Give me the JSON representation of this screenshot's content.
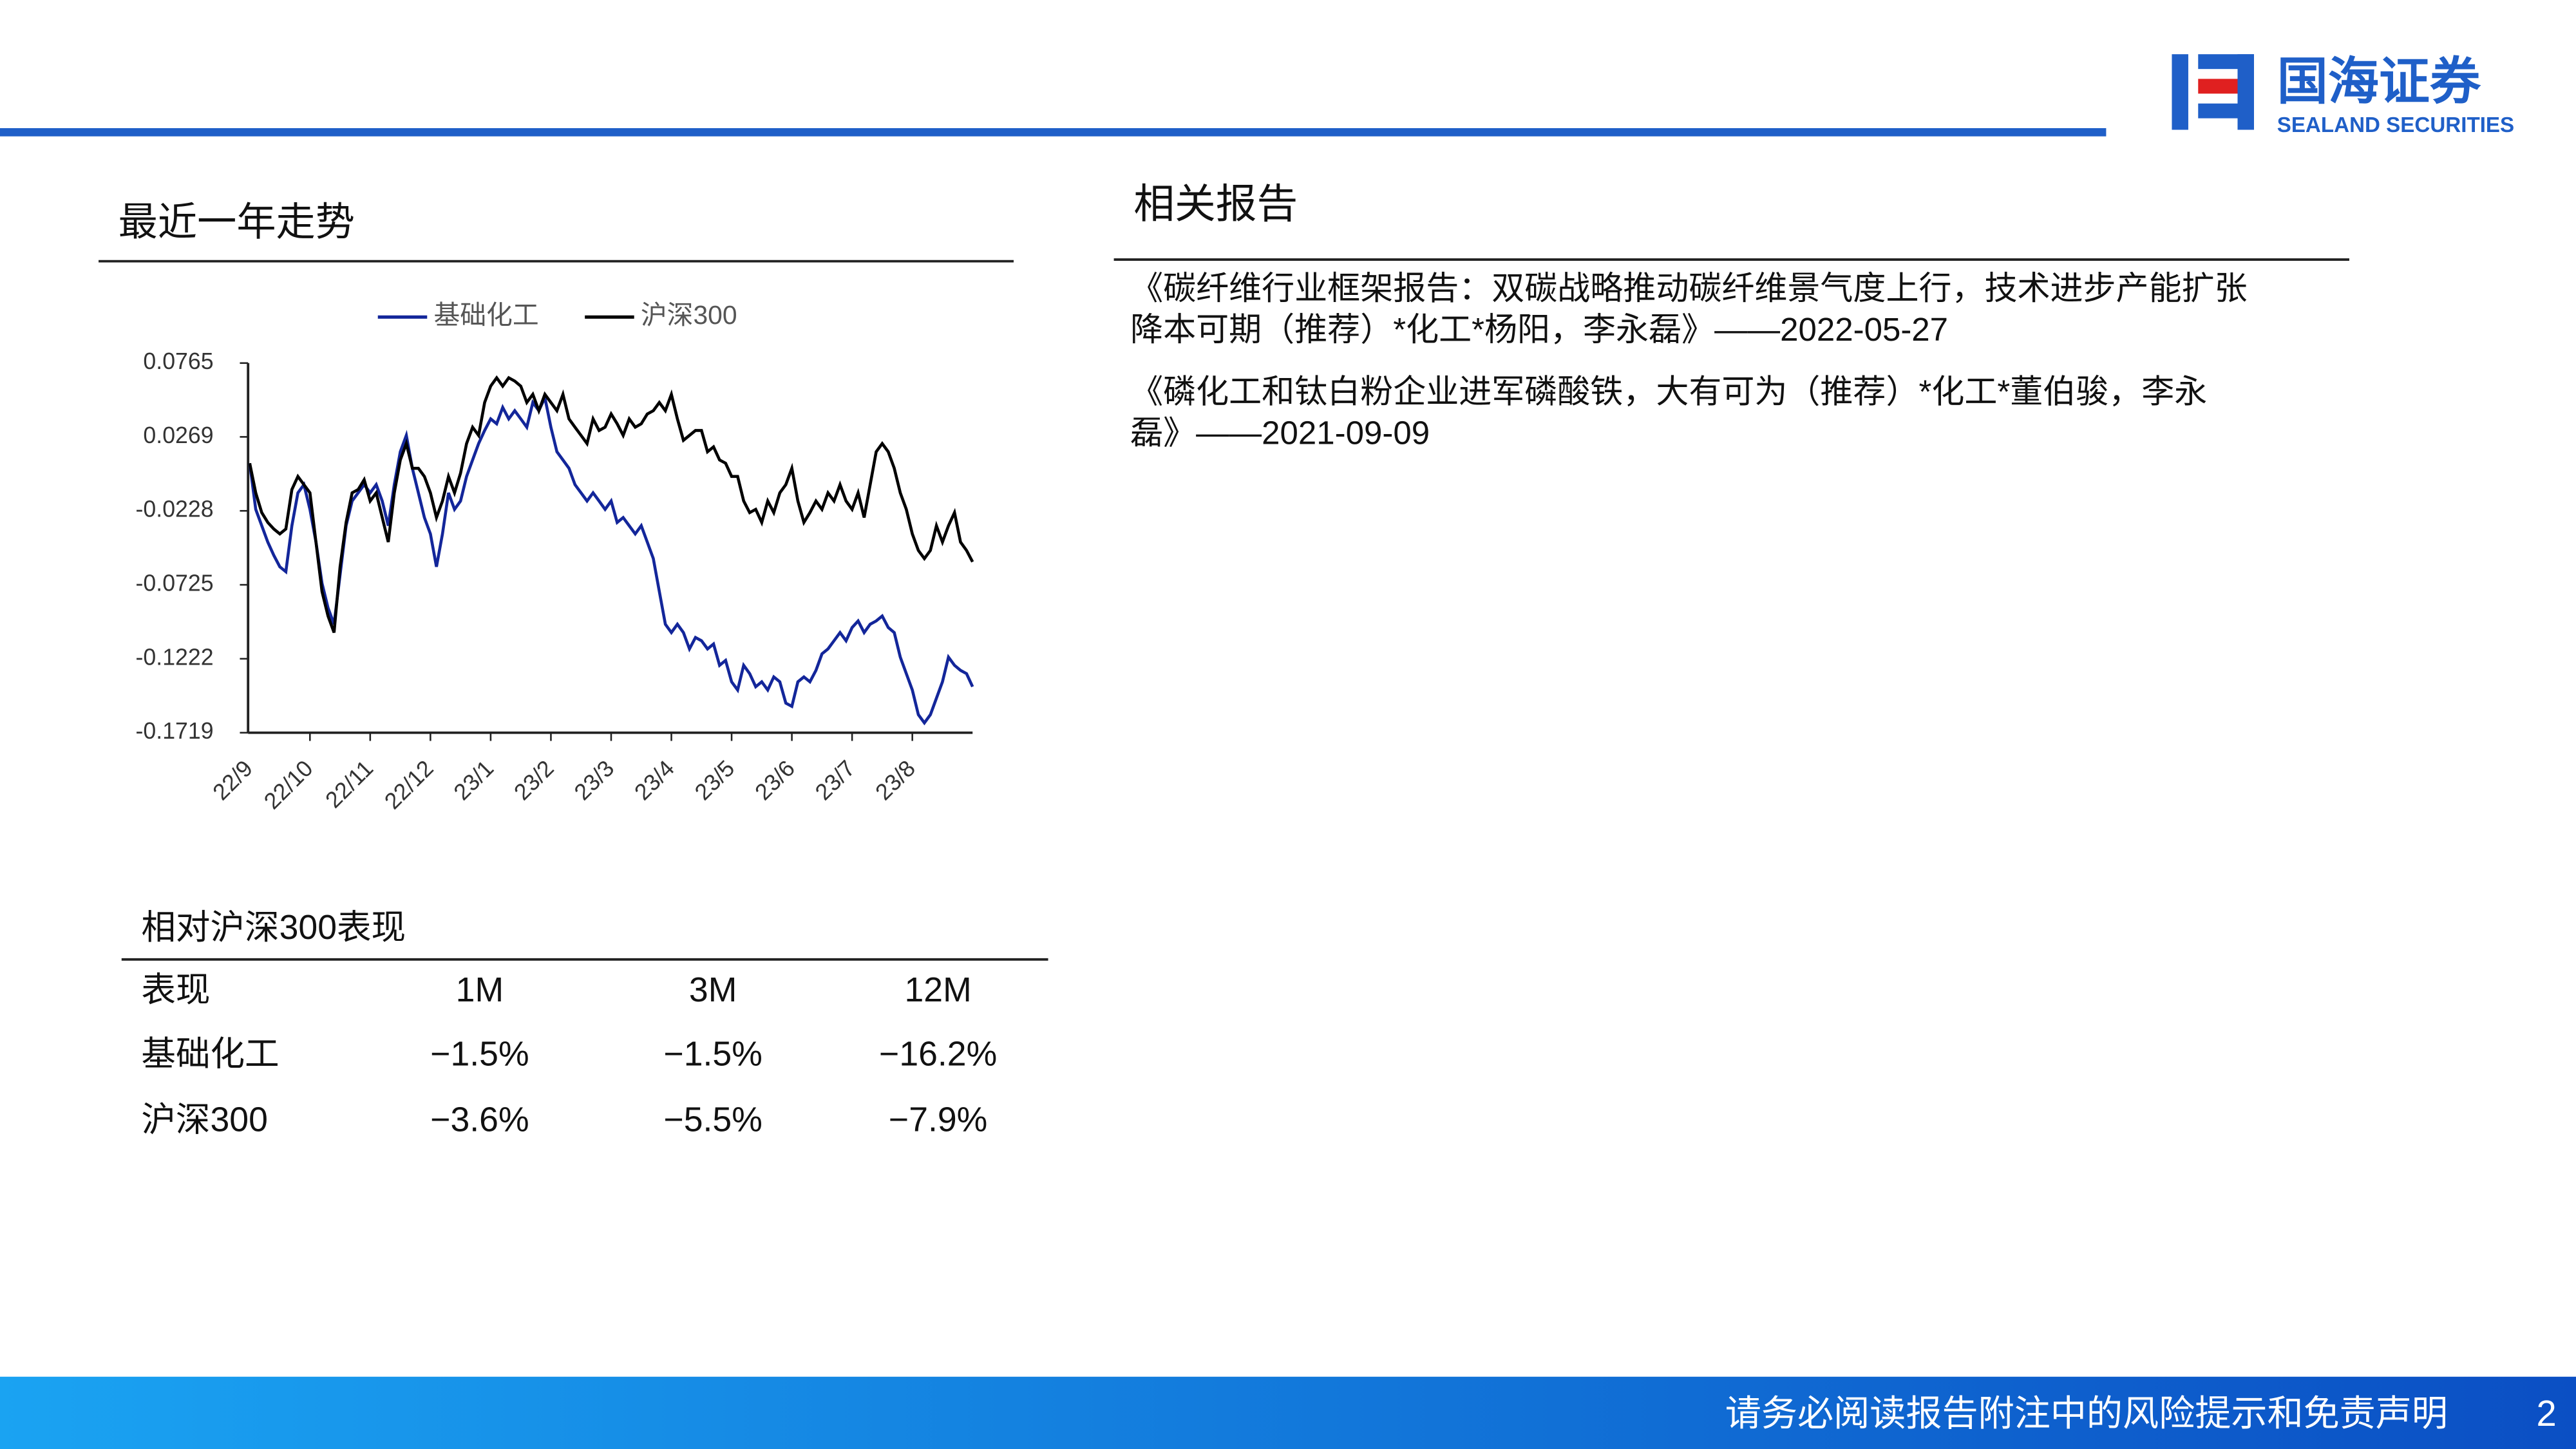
{
  "header": {
    "logo_cn": "国海证券",
    "logo_en": "SEALAND SECURITIES"
  },
  "trend": {
    "title": "最近一年走势"
  },
  "chart_data": {
    "type": "line",
    "categories": [
      "22/9",
      null,
      null,
      null,
      null,
      null,
      null,
      null,
      null,
      null,
      "22/10",
      null,
      null,
      null,
      null,
      null,
      null,
      null,
      null,
      null,
      "22/11",
      null,
      null,
      null,
      null,
      null,
      null,
      null,
      null,
      null,
      "22/12",
      null,
      null,
      null,
      null,
      null,
      null,
      null,
      null,
      null,
      "23/1",
      null,
      null,
      null,
      null,
      null,
      null,
      null,
      null,
      null,
      "23/2",
      null,
      null,
      null,
      null,
      null,
      null,
      null,
      null,
      null,
      "23/3",
      null,
      null,
      null,
      null,
      null,
      null,
      null,
      null,
      null,
      "23/4",
      null,
      null,
      null,
      null,
      null,
      null,
      null,
      null,
      null,
      "23/5",
      null,
      null,
      null,
      null,
      null,
      null,
      null,
      null,
      null,
      "23/6",
      null,
      null,
      null,
      null,
      null,
      null,
      null,
      null,
      null,
      "23/7",
      null,
      null,
      null,
      null,
      null,
      null,
      null,
      null,
      null,
      "23/8",
      null,
      null,
      null,
      null,
      null,
      null,
      null,
      null,
      null,
      null
    ],
    "series": [
      {
        "name": "基础化工",
        "color": "#13269a",
        "values": [
          0.0092,
          -0.0218,
          -0.0328,
          -0.0438,
          -0.0527,
          -0.0604,
          -0.0637,
          -0.0328,
          -0.0107,
          -0.0052,
          -0.0218,
          -0.0438,
          -0.0714,
          -0.088,
          -0.099,
          -0.0659,
          -0.0328,
          -0.0162,
          -0.0107,
          -0.0052,
          -0.0107,
          -0.0052,
          -0.0162,
          -0.0328,
          -0.0052,
          0.0169,
          0.0279,
          0.0058,
          -0.0107,
          -0.0273,
          -0.0383,
          -0.0604,
          -0.0383,
          -0.0107,
          -0.0218,
          -0.0162,
          0.0003,
          0.0114,
          0.0224,
          0.0312,
          0.039,
          0.0357,
          0.0467,
          0.039,
          0.0445,
          0.039,
          0.0334,
          0.05,
          0.0445,
          0.0533,
          0.0334,
          0.0169,
          0.0114,
          0.0058,
          -0.0052,
          -0.0107,
          -0.0162,
          -0.0107,
          -0.0162,
          -0.0218,
          -0.0162,
          -0.0306,
          -0.0273,
          -0.0328,
          -0.0383,
          -0.0328,
          -0.0438,
          -0.0549,
          -0.077,
          -0.099,
          -0.1046,
          -0.099,
          -0.1046,
          -0.1156,
          -0.1079,
          -0.1101,
          -0.1156,
          -0.1123,
          -0.1266,
          -0.1233,
          -0.1377,
          -0.1432,
          -0.1266,
          -0.1322,
          -0.141,
          -0.1377,
          -0.1432,
          -0.1344,
          -0.1377,
          -0.152,
          -0.1542,
          -0.1377,
          -0.1344,
          -0.1377,
          -0.13,
          -0.1189,
          -0.1156,
          -0.1101,
          -0.1046,
          -0.1101,
          -0.1012,
          -0.0968,
          -0.1046,
          -0.099,
          -0.0968,
          -0.0935,
          -0.1012,
          -0.1046,
          -0.1211,
          -0.1322,
          -0.1432,
          -0.1598,
          -0.1653,
          -0.1598,
          -0.1487,
          -0.1377,
          -0.1211,
          -0.1266,
          -0.13,
          -0.1322,
          -0.141
        ]
      },
      {
        "name": "沪深300",
        "color": "#000000",
        "values": [
          0.0092,
          -0.0107,
          -0.024,
          -0.0306,
          -0.035,
          -0.0383,
          -0.035,
          -0.0085,
          0.0003,
          -0.0052,
          -0.0107,
          -0.0438,
          -0.077,
          -0.0935,
          -0.1046,
          -0.0604,
          -0.0306,
          -0.0107,
          -0.0085,
          -0.0019,
          -0.0162,
          -0.0107,
          -0.0273,
          -0.0438,
          -0.0107,
          0.0114,
          0.0224,
          0.0058,
          0.0058,
          0.0003,
          -0.0107,
          -0.0273,
          -0.0162,
          0.0003,
          -0.0107,
          0.0025,
          0.0224,
          0.0334,
          0.0279,
          0.05,
          0.061,
          0.0666,
          0.061,
          0.0666,
          0.0644,
          0.061,
          0.05,
          0.0555,
          0.0445,
          0.0555,
          0.05,
          0.0445,
          0.0555,
          0.039,
          0.0334,
          0.0279,
          0.0224,
          0.039,
          0.0312,
          0.0334,
          0.0423,
          0.0357,
          0.0279,
          0.039,
          0.0334,
          0.0357,
          0.0423,
          0.0445,
          0.05,
          0.0445,
          0.0555,
          0.039,
          0.0246,
          0.0279,
          0.0312,
          0.0312,
          0.0169,
          0.0202,
          0.0114,
          0.0092,
          0.0003,
          0.0003,
          -0.0162,
          -0.024,
          -0.0218,
          -0.0306,
          -0.0162,
          -0.024,
          -0.0107,
          -0.0052,
          0.0058,
          -0.0162,
          -0.0306,
          -0.024,
          -0.0162,
          -0.0218,
          -0.0107,
          -0.0162,
          -0.0052,
          -0.0162,
          -0.0218,
          -0.0107,
          -0.0273,
          -0.0052,
          0.0169,
          0.0224,
          0.0169,
          0.0058,
          -0.0107,
          -0.0218,
          -0.0383,
          -0.0494,
          -0.0549,
          -0.0494,
          -0.0328,
          -0.0438,
          -0.0328,
          -0.024,
          -0.0438,
          -0.0494,
          -0.0571
        ]
      }
    ],
    "ylim": [
      -0.1719,
      0.0765
    ],
    "yticks": [
      0.0765,
      0.0269,
      -0.0228,
      -0.0725,
      -0.1222,
      -0.1719
    ],
    "legend": "top"
  },
  "performance": {
    "title": "相对沪深300表现",
    "columns": [
      "表现",
      "1M",
      "3M",
      "12M"
    ],
    "rows": [
      [
        "基础化工",
        "−1.5%",
        "−1.5%",
        "−16.2%"
      ],
      [
        "沪深300",
        "−3.6%",
        "−5.5%",
        "−7.9%"
      ]
    ]
  },
  "related": {
    "title": "相关报告",
    "reports": [
      [
        "《碳纤维行业框架报告：双碳战略推动碳纤维景气度上行，技术进步产能扩张",
        "降本可期（推荐）*化工*杨阳，李永磊》——2022-05-27"
      ],
      [
        "《磷化工和钛白粉企业进军磷酸铁，大有可为（推荐）*化工*董伯骏，李永",
        "磊》——2021-09-09"
      ]
    ]
  },
  "footer": {
    "disclaimer": "请务必阅读报告附注中的风险提示和免责声明",
    "page": "2"
  }
}
